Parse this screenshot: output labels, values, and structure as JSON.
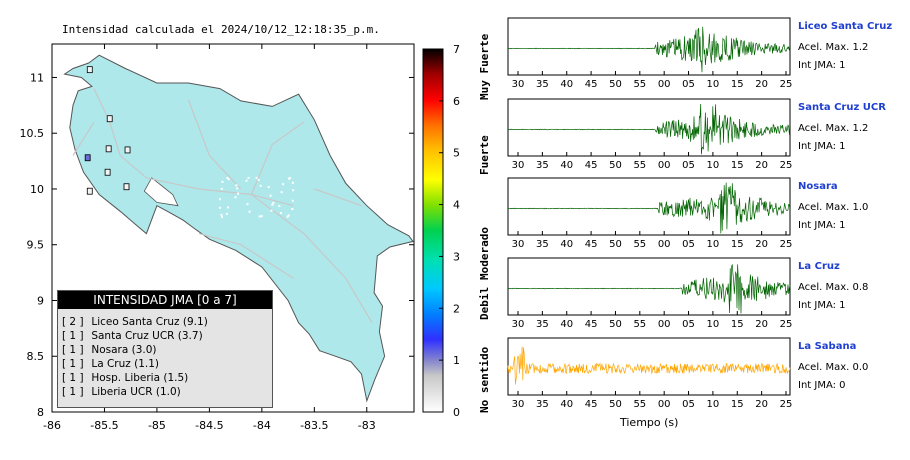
{
  "map": {
    "title": "Intensidad calculada el 2024/10/12_12:18:35_p.m.",
    "lon_ticks": [
      "-86",
      "-85.5",
      "-85",
      "-84.5",
      "-84",
      "-83.5",
      "-83"
    ],
    "lat_ticks": [
      "8",
      "8.5",
      "9",
      "9.5",
      "10",
      "10.5",
      "11"
    ],
    "land_color": "#aee8ea",
    "station_markers": [
      {
        "lon": -85.64,
        "lat": 11.07,
        "intensity": 1
      },
      {
        "lon": -85.45,
        "lat": 10.63,
        "intensity": 1
      },
      {
        "lon": -85.66,
        "lat": 10.28,
        "intensity": 2
      },
      {
        "lon": -85.46,
        "lat": 10.36,
        "intensity": 1
      },
      {
        "lon": -85.47,
        "lat": 10.15,
        "intensity": 1
      },
      {
        "lon": -85.28,
        "lat": 10.35,
        "intensity": 1
      },
      {
        "lon": -85.29,
        "lat": 10.02,
        "intensity": 1
      },
      {
        "lon": -85.64,
        "lat": 9.98,
        "intensity": 1
      }
    ]
  },
  "legend": {
    "header": "INTENSIDAD JMA [0 a 7]",
    "items": [
      {
        "level": "[ 2 ]",
        "label": "Liceo Santa Cruz (9.1)"
      },
      {
        "level": "[ 1 ]",
        "label": "Santa Cruz UCR (3.7)"
      },
      {
        "level": "[ 1 ]",
        "label": "Nosara (3.0)"
      },
      {
        "level": "[ 1 ]",
        "label": "La Cruz (1.1)"
      },
      {
        "level": "[ 1 ]",
        "label": "Hosp. Liberia (1.5)"
      },
      {
        "level": "[ 1 ]",
        "label": "Liberia UCR (1.0)"
      }
    ]
  },
  "colorbar": {
    "ticks": [
      "0",
      "1",
      "2",
      "3",
      "4",
      "5",
      "6",
      "7"
    ],
    "labels": [
      "No sentido",
      "Debil",
      "Moderado",
      "Fuerte",
      "Muy Fuerte"
    ]
  },
  "traces": {
    "x_ticks": [
      "30",
      "35",
      "40",
      "45",
      "50",
      "55",
      "00",
      "05",
      "10",
      "15",
      "20",
      "25"
    ],
    "x_title": "Tiempo (s)",
    "stations": [
      {
        "name": "Liceo Santa Cruz",
        "accel": "Acel. Max. 1.2",
        "jma": "Int JMA: 1",
        "color": "#006400",
        "onset": 0.52,
        "peak": 0.69,
        "baseline": "#008000"
      },
      {
        "name": "Santa Cruz UCR",
        "accel": "Acel. Max. 1.2",
        "jma": "Int JMA: 1",
        "color": "#006400",
        "onset": 0.52,
        "peak": 0.71,
        "baseline": "#008000"
      },
      {
        "name": "Nosara",
        "accel": "Acel. Max. 1.0",
        "jma": "Int JMA: 1",
        "color": "#006400",
        "onset": 0.53,
        "peak": 0.78,
        "baseline": "#008000"
      },
      {
        "name": "La Cruz",
        "accel": "Acel. Max. 0.8",
        "jma": "Int JMA: 1",
        "color": "#006400",
        "onset": 0.61,
        "peak": 0.8,
        "baseline": "#008000"
      },
      {
        "name": "La Sabana",
        "accel": "Acel. Max. 0.0",
        "jma": "Int JMA: 0",
        "color": "#ffa500",
        "onset": 0.0,
        "peak": 0.04,
        "baseline": "#ffa500"
      }
    ]
  }
}
